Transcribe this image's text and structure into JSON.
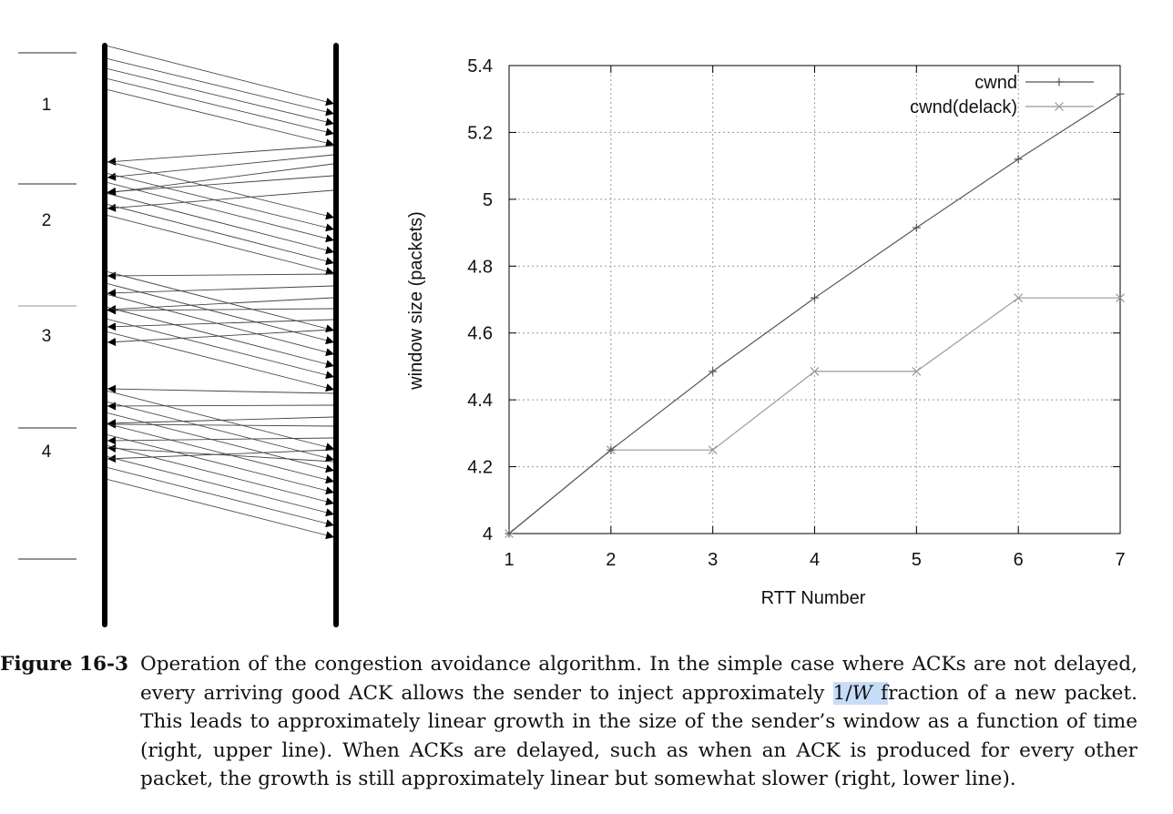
{
  "diagram": {
    "rtt_labels": [
      "1",
      "2",
      "3",
      "4"
    ]
  },
  "chart_data": {
    "type": "line",
    "xlabel": "RTT Number",
    "ylabel": "window size (packets)",
    "xlim": [
      1,
      7
    ],
    "ylim": [
      4,
      5.4
    ],
    "x_ticks": [
      "1",
      "2",
      "3",
      "4",
      "5",
      "6",
      "7"
    ],
    "y_ticks": [
      "4",
      "4.2",
      "4.4",
      "4.6",
      "4.8",
      "5",
      "5.2",
      "5.4"
    ],
    "grid": true,
    "legend_position": "top-right",
    "series": [
      {
        "name": "cwnd",
        "marker": "+",
        "color": "#555555",
        "x": [
          1,
          2,
          3,
          4,
          5,
          6,
          7
        ],
        "y": [
          4.0,
          4.25,
          4.485,
          4.705,
          4.915,
          5.12,
          5.315
        ]
      },
      {
        "name": "cwnd(delack)",
        "marker": "x",
        "color": "#999999",
        "x": [
          1,
          2,
          3,
          4,
          5,
          6,
          7
        ],
        "y": [
          4.0,
          4.25,
          4.25,
          4.485,
          4.485,
          4.705,
          4.705
        ]
      }
    ]
  },
  "caption": {
    "label": "Figure 16-3",
    "text_before": "Operation of the congestion avoidance algorithm. In the simple case where ACKs are not delayed, every arriving good ACK allows the sender to inject approximately ",
    "highlight_num": "1/",
    "highlight_var": "W",
    "highlight_tail": " f",
    "text_after": "raction of a new packet. This leads to approximately linear growth in the size of the sender’s window as a function of time (right, upper line). When ACKs are delayed, such as when an ACK is produced for every other packet, the growth is still approximately linear but somewhat slower (right, lower line)."
  }
}
